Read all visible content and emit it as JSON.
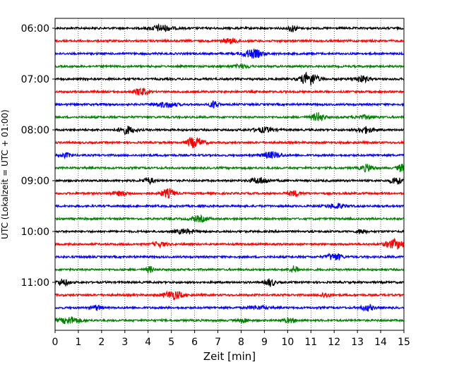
{
  "chart_data": {
    "type": "line",
    "title": "",
    "xlabel": "Zeit  [min]",
    "ylabel": "UTC (Lokalzeit = UTC + 01:00)",
    "xlim": [
      0,
      15
    ],
    "x_ticks": [
      "0",
      "1",
      "2",
      "3",
      "4",
      "5",
      "6",
      "7",
      "8",
      "9",
      "10",
      "11",
      "12",
      "13",
      "14",
      "15"
    ],
    "y_ticks": [
      "06:00",
      "07:00",
      "08:00",
      "09:00",
      "10:00",
      "11:00"
    ],
    "grid": "vertical dotted lines at each minute",
    "trace_interval_min": 15,
    "trace_start": "06:00",
    "traces": [
      {
        "start": "06:00",
        "color": "#000000"
      },
      {
        "start": "06:15",
        "color": "#ff0000"
      },
      {
        "start": "06:30",
        "color": "#0000ff"
      },
      {
        "start": "06:45",
        "color": "#008000"
      },
      {
        "start": "07:00",
        "color": "#000000"
      },
      {
        "start": "07:15",
        "color": "#ff0000"
      },
      {
        "start": "07:30",
        "color": "#0000ff"
      },
      {
        "start": "07:45",
        "color": "#008000"
      },
      {
        "start": "08:00",
        "color": "#000000"
      },
      {
        "start": "08:15",
        "color": "#ff0000"
      },
      {
        "start": "08:30",
        "color": "#0000ff"
      },
      {
        "start": "08:45",
        "color": "#008000"
      },
      {
        "start": "09:00",
        "color": "#000000"
      },
      {
        "start": "09:15",
        "color": "#ff0000"
      },
      {
        "start": "09:30",
        "color": "#0000ff"
      },
      {
        "start": "09:45",
        "color": "#008000"
      },
      {
        "start": "10:00",
        "color": "#000000"
      },
      {
        "start": "10:15",
        "color": "#ff0000"
      },
      {
        "start": "10:30",
        "color": "#0000ff"
      },
      {
        "start": "10:45",
        "color": "#008000"
      },
      {
        "start": "11:00",
        "color": "#000000"
      },
      {
        "start": "11:15",
        "color": "#ff0000"
      },
      {
        "start": "11:30",
        "color": "#0000ff"
      },
      {
        "start": "11:45",
        "color": "#008000"
      }
    ],
    "colors": [
      "#000000",
      "#ff0000",
      "#0000ff",
      "#008000"
    ]
  }
}
